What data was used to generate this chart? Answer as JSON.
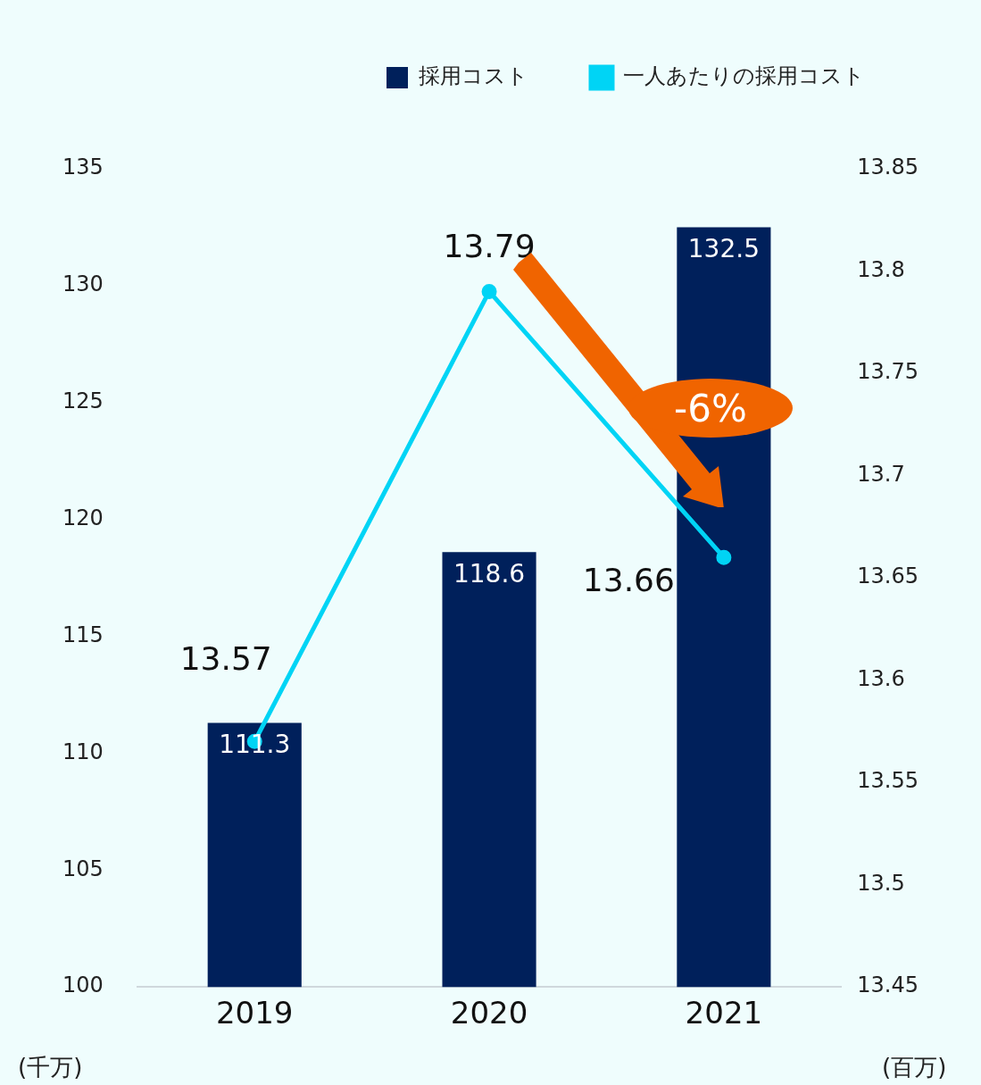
{
  "chart_data": {
    "type": "bar",
    "categories": [
      "2019",
      "2020",
      "2021"
    ],
    "series": [
      {
        "name": "採用コスト",
        "color": "#00205b",
        "values": [
          111.3,
          118.6,
          132.5
        ]
      },
      {
        "name": "一人あたりの採用コスト",
        "type": "line",
        "axis": "y2",
        "color": "#00d4f5",
        "values": [
          13.57,
          13.79,
          13.66
        ]
      }
    ],
    "ylim": [
      100,
      135
    ],
    "yticks": [
      100,
      105,
      110,
      115,
      120,
      125,
      130,
      135
    ],
    "y2lim": [
      13.45,
      13.85
    ],
    "y2ticks": [
      13.45,
      13.5,
      13.55,
      13.6,
      13.65,
      13.7,
      13.75,
      13.8,
      13.85
    ],
    "ylabel": "(千万)",
    "y2label": "(百万)",
    "annotations": [
      "-6%"
    ],
    "data_labels": true,
    "grid": false,
    "legend": "top",
    "marker": "circle"
  }
}
